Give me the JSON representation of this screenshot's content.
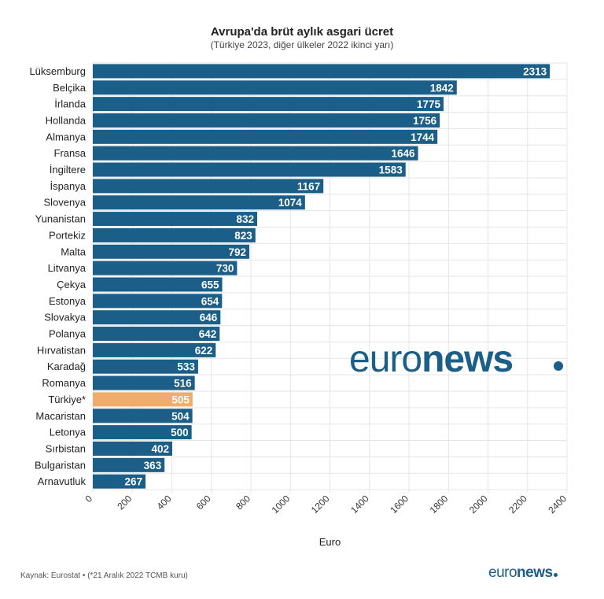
{
  "chart_data": {
    "type": "bar",
    "orientation": "horizontal",
    "title": "Avrupa'da brüt aylık asgari ücret",
    "subtitle": "(Türkiye 2023, diğer ülkeler 2022 ikinci yarı)",
    "xlabel": "Euro",
    "categories": [
      "Lüksemburg",
      "Belçika",
      "İrlanda",
      "Hollanda",
      "Almanya",
      "Fransa",
      "İngiltere",
      "İspanya",
      "Slovenya",
      "Yunanistan",
      "Portekiz",
      "Malta",
      "Litvanya",
      "Çekya",
      "Estonya",
      "Slovakya",
      "Polanya",
      "Hırvatistan",
      "Karadağ",
      "Romanya",
      "Türkiye*",
      "Macaristan",
      "Letonya",
      "Sırbistan",
      "Bulgaristan",
      "Arnavutluk"
    ],
    "values": [
      2313,
      1842,
      1775,
      1756,
      1744,
      1646,
      1583,
      1167,
      1074,
      832,
      823,
      792,
      730,
      655,
      654,
      646,
      642,
      622,
      533,
      516,
      505,
      504,
      500,
      402,
      363,
      267
    ],
    "highlight": "Türkiye*",
    "xlim": [
      0,
      2400
    ],
    "xticks": [
      0,
      200,
      400,
      600,
      800,
      1000,
      1200,
      1400,
      1600,
      1800,
      2000,
      2200,
      2400
    ],
    "grid": true
  },
  "colors": {
    "bar": "#1b5e88",
    "highlight": "#efac6b",
    "grid": "#e5e5e5",
    "brand": "#1b5e88"
  },
  "watermark": {
    "light": "euro",
    "bold": "news"
  },
  "footer": {
    "source": "Kaynak: Eurostat • (*21 Aralık 2022 TCMB kuru)",
    "brand_light": "euro",
    "brand_bold": "news"
  },
  "icons": {
    "watermark_logo": "euronews-logo",
    "footer_logo": "euronews-logo"
  }
}
